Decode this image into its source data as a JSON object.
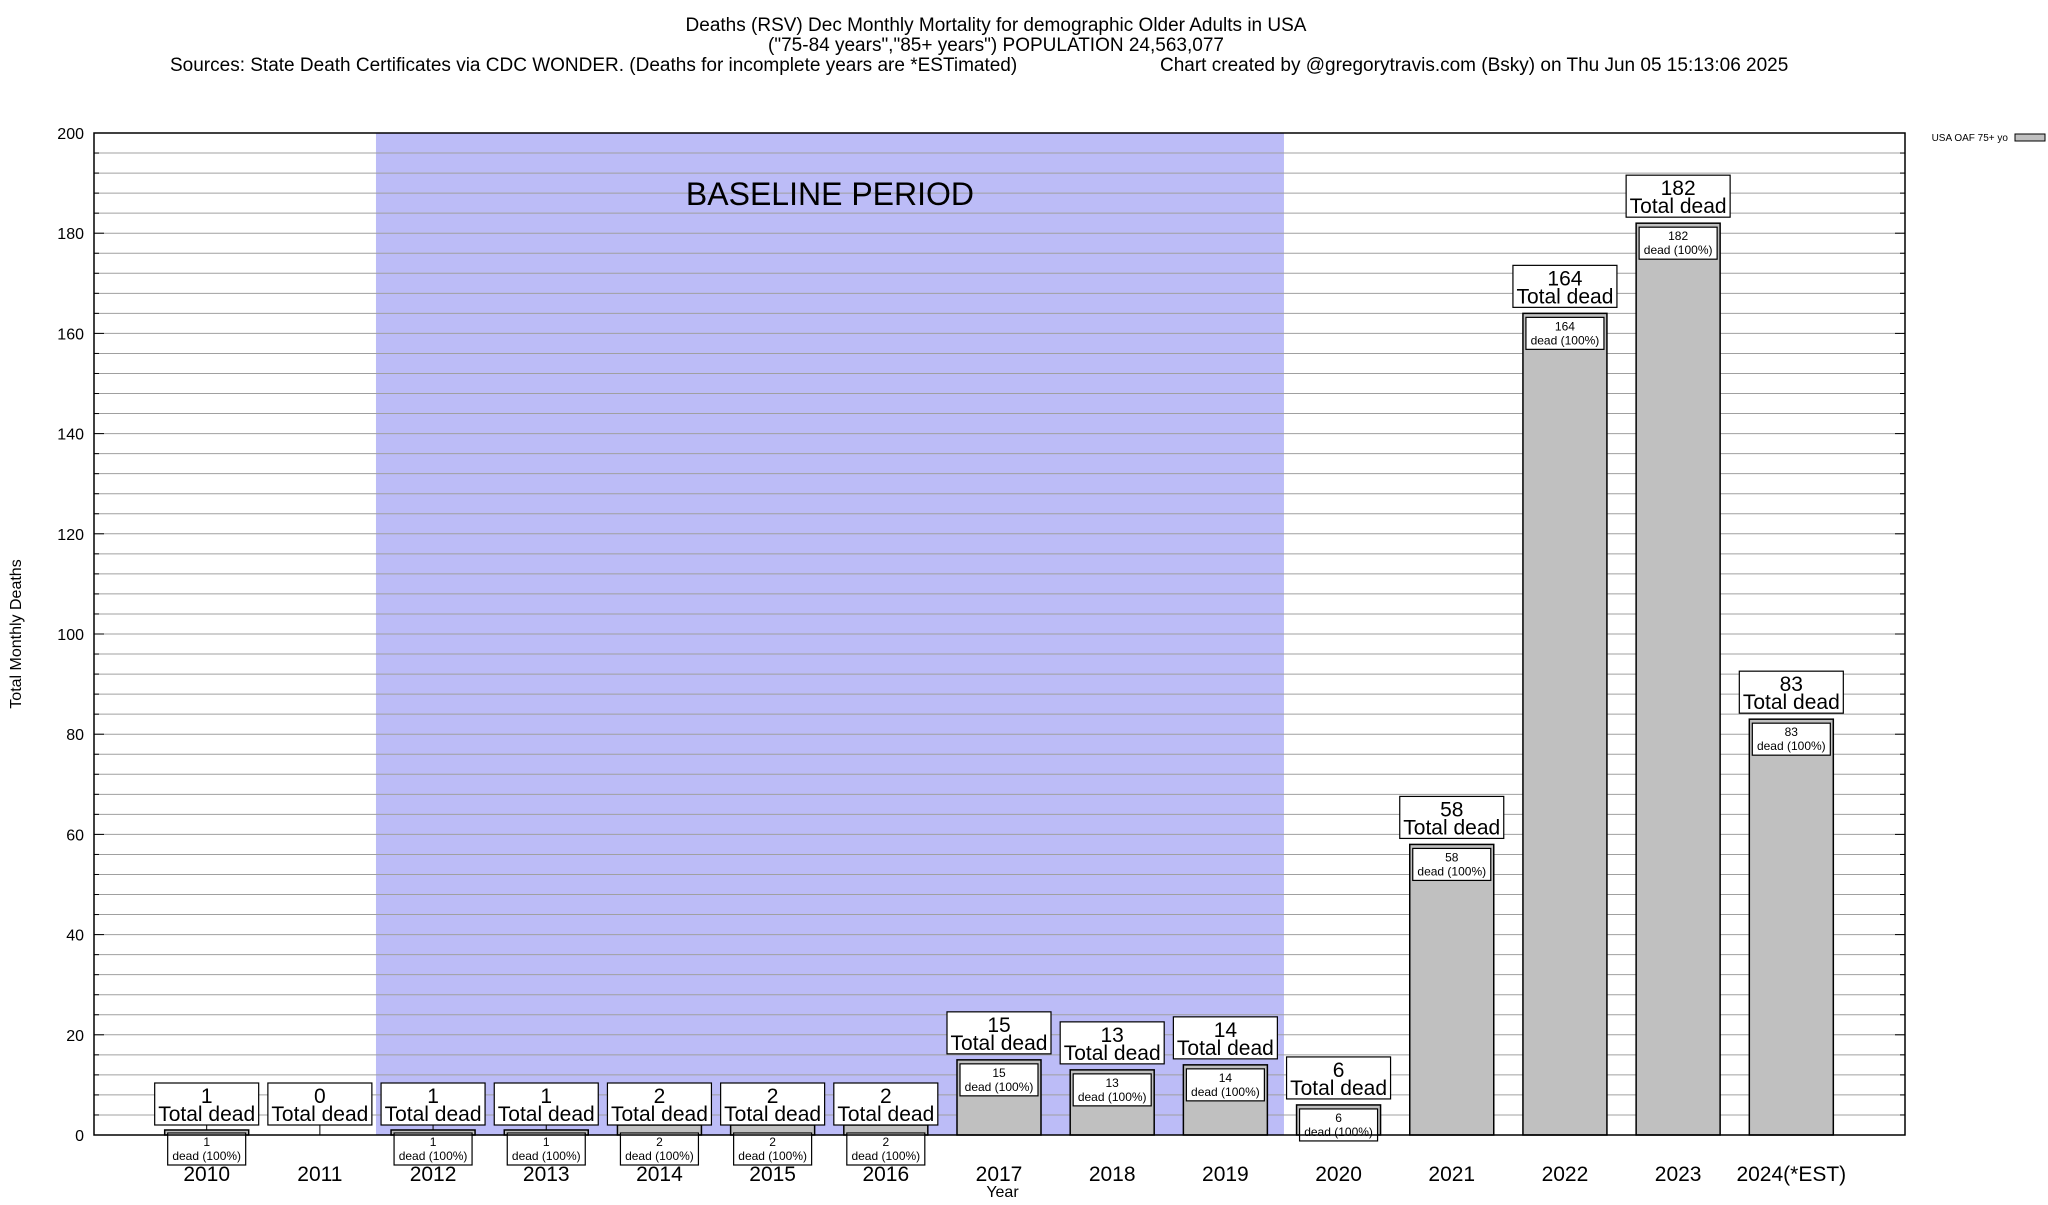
{
  "chart_data": {
    "type": "bar",
    "title_lines": [
      "Deaths (RSV) Dec Monthly Mortality for demographic Older Adults in USA",
      "(\"75-84 years\",\"85+ years\") POPULATION 24,563,077"
    ],
    "sources": "Sources: State Death Certificates via CDC WONDER. (Deaths for incomplete years are *ESTimated)",
    "credit": "Chart created by @gregorytravis.com (Bsky) on Thu Jun 05 15:13:06 2025",
    "xlabel": "Year",
    "ylabel": "Total Monthly Deaths",
    "ylim": [
      0,
      200
    ],
    "yticks": [
      0,
      20,
      40,
      60,
      80,
      100,
      120,
      140,
      160,
      180,
      200
    ],
    "grid": true,
    "legend": {
      "position": "top-right",
      "label": "USA OAF 75+ yo",
      "color": "#c0c0c0"
    },
    "categories": [
      "2010",
      "2011",
      "2012",
      "2013",
      "2014",
      "2015",
      "2016",
      "2017",
      "2018",
      "2019",
      "2020",
      "2021",
      "2022",
      "2023",
      "2024(*EST)"
    ],
    "series": [
      {
        "name": "USA OAF 75+ yo",
        "values": [
          1,
          0,
          1,
          1,
          2,
          2,
          2,
          15,
          13,
          14,
          6,
          58,
          164,
          182,
          83
        ]
      }
    ],
    "total_label_suffix": "Total dead",
    "inner_label_suffix": "dead (100%)",
    "baseline": {
      "label": "BASELINE PERIOD",
      "from": "2012",
      "to": "2019",
      "color": "#bcbcf7"
    },
    "bar_color": "#c0c0c0"
  }
}
